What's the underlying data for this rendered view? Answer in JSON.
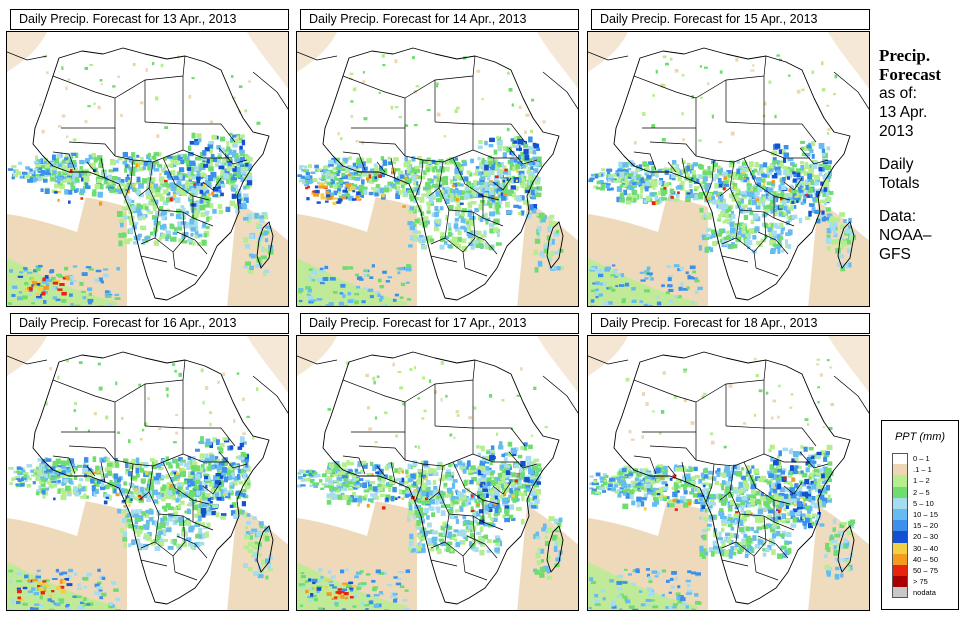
{
  "panels": [
    {
      "title": "Daily Precip. Forecast for  13 Apr., 2013",
      "seed": 13
    },
    {
      "title": "Daily Precip. Forecast for  14 Apr., 2013",
      "seed": 14
    },
    {
      "title": "Daily Precip. Forecast for  15 Apr., 2013",
      "seed": 15
    },
    {
      "title": "Daily Precip. Forecast for  16 Apr., 2013",
      "seed": 16
    },
    {
      "title": "Daily Precip. Forecast for  17 Apr., 2013",
      "seed": 17
    },
    {
      "title": "Daily Precip. Forecast for  18 Apr., 2013",
      "seed": 18
    }
  ],
  "side": {
    "title_line1": "Precip.",
    "title_line2": "Forecast",
    "asof_line1": "as of:",
    "asof_line2": "13 Apr.",
    "asof_line3": "2013",
    "totals_line1": "Daily",
    "totals_line2": "Totals",
    "data_line1": "Data:",
    "data_line2": "NOAA–",
    "data_line3": "GFS"
  },
  "legend": {
    "title": "PPT (mm)",
    "items": [
      {
        "label": "0 – 1",
        "color": "#ffffff"
      },
      {
        "label": ".1 – 1",
        "color": "#ecd6b4"
      },
      {
        "label": "1 – 2",
        "color": "#b4ee8e"
      },
      {
        "label": "2 – 5",
        "color": "#6edc6e"
      },
      {
        "label": "5 – 10",
        "color": "#a6dcf0"
      },
      {
        "label": "10 – 15",
        "color": "#66bcf0"
      },
      {
        "label": "15 – 20",
        "color": "#3a90ea"
      },
      {
        "label": "20 – 30",
        "color": "#1450d2"
      },
      {
        "label": "30 – 40",
        "color": "#f2d046"
      },
      {
        "label": "40 – 50",
        "color": "#f49a1e"
      },
      {
        "label": "50 – 75",
        "color": "#e8240e"
      },
      {
        "label": "> 75",
        "color": "#a80000"
      },
      {
        "label": "nodata",
        "color": "#c8c8c8"
      }
    ]
  }
}
